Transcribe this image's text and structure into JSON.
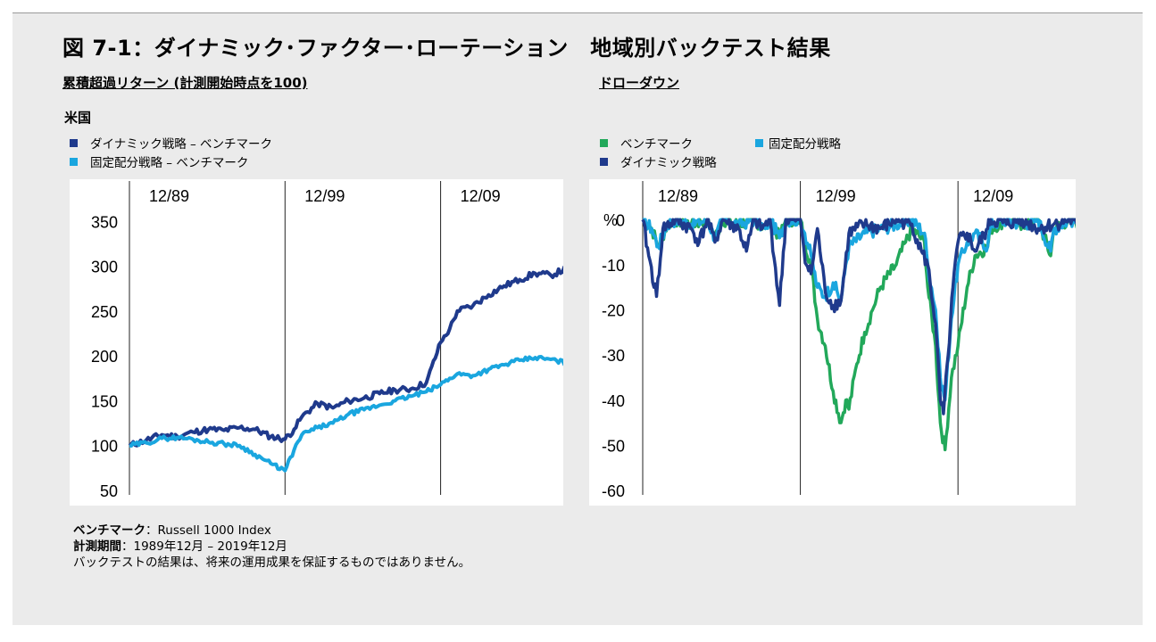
{
  "title": "図 7-1：ダイナミック･ファクター･ローテーション　地域別バックテスト結果",
  "left_subtitle": "累積超過リターン (計測開始時点を100)",
  "right_subtitle": "ドローダウン",
  "region": "米国",
  "colors": {
    "dynamic": "#1f3a8c",
    "fixed": "#1aa6df",
    "benchmark": "#22a85a",
    "background": "#ebebeb"
  },
  "legend_left": [
    {
      "label": "ダイナミック戦略 – ベンチマーク",
      "color": "#1f3a8c"
    },
    {
      "label": "固定配分戦略 – ベンチマーク",
      "color": "#1aa6df"
    }
  ],
  "legend_right": [
    {
      "label": "ベンチマーク",
      "color": "#22a85a"
    },
    {
      "label": "固定配分戦略",
      "color": "#1aa6df"
    },
    {
      "label": "ダイナミック戦略",
      "color": "#1f3a8c"
    }
  ],
  "notes": {
    "benchmark_label": "ベンチマーク",
    "benchmark_value": "：Russell 1000 Index",
    "period_label": "計測期間",
    "period_value": "：1989年12月 – 2019年12月",
    "disclaimer": "バックテストの結果は、将来の運用成果を保証するものではありません。"
  },
  "chart_data": [
    {
      "type": "line",
      "title": "累積超過リターン (計測開始時点を100)",
      "x_markers": [
        "12/89",
        "12/99",
        "12/09"
      ],
      "yticks": [
        50,
        100,
        150,
        200,
        250,
        300,
        350
      ],
      "xlim": [
        1989.92,
        2020.5
      ],
      "ylim": [
        45,
        395
      ],
      "series": [
        {
          "name": "ダイナミック戦略 – ベンチマーク",
          "x": [
            1989.92,
            1991,
            1992,
            1993,
            1994,
            1995,
            1996,
            1997,
            1998,
            1999,
            1999.92,
            2000.5,
            2001,
            2002,
            2003,
            2004,
            2005,
            2006,
            2007,
            2008,
            2009,
            2009.92,
            2010.5,
            2011,
            2012,
            2013,
            2014,
            2015,
            2016,
            2017,
            2018,
            2019,
            2019.92
          ],
          "values": [
            100,
            106,
            112,
            110,
            115,
            118,
            117,
            120,
            118,
            110,
            107,
            118,
            132,
            147,
            142,
            150,
            153,
            158,
            162,
            163,
            170,
            215,
            230,
            250,
            256,
            268,
            278,
            285,
            292,
            290,
            297,
            307,
            320
          ]
        },
        {
          "name": "固定配分戦略 – ベンチマーク",
          "x": [
            1989.92,
            1991,
            1992,
            1993,
            1994,
            1995,
            1996,
            1997,
            1998,
            1999,
            1999.92,
            2000.5,
            2001,
            2002,
            2003,
            2004,
            2005,
            2006,
            2007,
            2008,
            2009,
            2009.92,
            2010.5,
            2011,
            2012,
            2013,
            2014,
            2015,
            2016,
            2017,
            2018,
            2019,
            2019.92
          ],
          "values": [
            100,
            103,
            108,
            109,
            107,
            104,
            102,
            100,
            90,
            80,
            72,
            95,
            112,
            120,
            125,
            135,
            140,
            145,
            150,
            155,
            160,
            168,
            175,
            180,
            178,
            185,
            190,
            195,
            198,
            196,
            192,
            188,
            182
          ]
        }
      ]
    },
    {
      "type": "line",
      "title": "ドローダウン",
      "ylabel": "%",
      "x_markers": [
        "12/89",
        "12/99",
        "12/09"
      ],
      "yticks": [
        0,
        -10,
        -20,
        -30,
        -40,
        -50,
        -60
      ],
      "xlim": [
        1989.92,
        2020.5
      ],
      "ylim": [
        -60,
        5
      ],
      "series": [
        {
          "name": "ベンチマーク",
          "x": [
            1989.92,
            1990.5,
            1990.9,
            1991.5,
            1992,
            1993,
            1994,
            1994.5,
            1995,
            1996,
            1997,
            1997.7,
            1998,
            1998.6,
            1999,
            1999.92,
            2000.2,
            2000.6,
            2001,
            2001.5,
            2002,
            2002.5,
            2002.8,
            2003,
            2003.5,
            2004,
            2004.5,
            2005,
            2006,
            2006.6,
            2007,
            2007.8,
            2008,
            2008.5,
            2008.8,
            2009.1,
            2009.5,
            2009.92,
            2010.5,
            2011,
            2011.8,
            2012,
            2013,
            2014,
            2015,
            2015.8,
            2016,
            2017,
            2018,
            2018.9,
            2019,
            2019.92
          ],
          "values": [
            0,
            -2,
            -6,
            -1,
            0,
            -1,
            0,
            -4,
            0,
            -1,
            0,
            -2,
            0,
            -4,
            0,
            0,
            -5,
            -10,
            -22,
            -28,
            -38,
            -45,
            -40,
            -42,
            -32,
            -25,
            -20,
            -15,
            -10,
            -5,
            -2,
            -5,
            -15,
            -28,
            -45,
            -51,
            -35,
            -28,
            -15,
            -8,
            -6,
            -2,
            0,
            -1,
            0,
            -8,
            -2,
            0,
            -1,
            -10,
            -3,
            0
          ]
        },
        {
          "name": "固定配分戦略",
          "x": [
            1989.92,
            1990.5,
            1990.9,
            1991.5,
            1992,
            1993,
            1994,
            1994.5,
            1995,
            1996,
            1997,
            1997.7,
            1998,
            1998.6,
            1999,
            1999.92,
            2000.2,
            2000.6,
            2001,
            2001.5,
            2002,
            2002.5,
            2002.8,
            2003,
            2004,
            2005,
            2006,
            2007,
            2007.8,
            2008,
            2008.5,
            2008.8,
            2009.1,
            2009.5,
            2009.92,
            2010.5,
            2011,
            2011.8,
            2012,
            2013,
            2014,
            2015,
            2015.8,
            2016,
            2017,
            2018,
            2018.9,
            2019,
            2019.92
          ],
          "values": [
            0,
            -2,
            -6,
            -1,
            0,
            -1,
            0,
            -4,
            0,
            -1,
            0,
            -2,
            0,
            -4,
            0,
            0,
            -3,
            -8,
            -15,
            -17,
            -14,
            -18,
            -10,
            -6,
            -3,
            -2,
            -1,
            0,
            -3,
            -10,
            -20,
            -35,
            -40,
            -22,
            -10,
            -5,
            -3,
            -6,
            -1,
            0,
            -1,
            0,
            -7,
            -2,
            0,
            -1,
            -9,
            -3,
            0
          ]
        },
        {
          "name": "ダイナミック戦略",
          "x": [
            1989.92,
            1990.3,
            1990.8,
            1991.2,
            1992,
            1993,
            1993.5,
            1994,
            1994.5,
            1995,
            1996,
            1996.5,
            1997,
            1997.5,
            1998,
            1998.6,
            1999,
            1999.92,
            2000.3,
            2000.6,
            2001,
            2001.5,
            2002,
            2002.5,
            2003,
            2004,
            2005,
            2006,
            2007,
            2007.6,
            2008,
            2008.5,
            2008.8,
            2009,
            2009.3,
            2009.6,
            2009.92,
            2010.5,
            2011,
            2011.8,
            2012,
            2013,
            2014,
            2015,
            2016,
            2017,
            2018,
            2018.9,
            2019,
            2019.92
          ],
          "values": [
            0,
            -8,
            -17,
            -2,
            0,
            -2,
            -5,
            0,
            -5,
            0,
            -2,
            -7,
            0,
            -2,
            0,
            -19,
            0,
            0,
            -10,
            -12,
            -2,
            -16,
            -19,
            -18,
            -3,
            -1,
            -2,
            0,
            -1,
            -7,
            -10,
            -23,
            -40,
            -43,
            -30,
            -15,
            -5,
            -3,
            -7,
            -2,
            0,
            -1,
            0,
            -2,
            -1,
            0,
            -3,
            -15,
            -2,
            0
          ]
        }
      ]
    }
  ]
}
